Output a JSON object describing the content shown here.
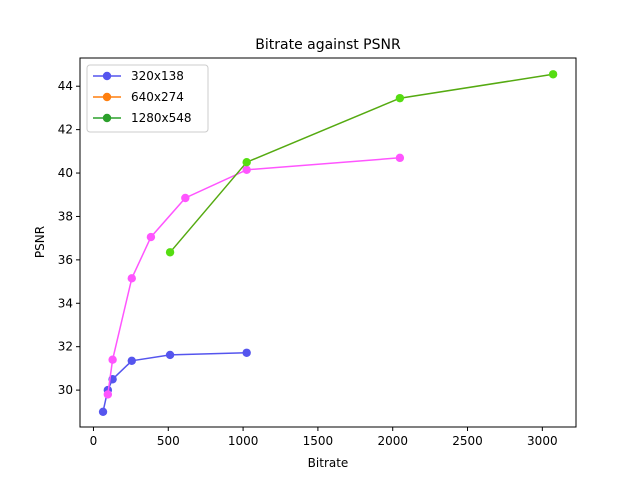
{
  "chart_data": {
    "type": "line",
    "title": "Bitrate against PSNR",
    "xlabel": "Bitrate",
    "ylabel": "PSNR",
    "xlim": [
      -90,
      3225
    ],
    "ylim": [
      28.3,
      45.3
    ],
    "xticks": [
      0,
      500,
      1000,
      1500,
      2000,
      2500,
      3000
    ],
    "yticks": [
      30,
      32,
      34,
      36,
      38,
      40,
      42,
      44
    ],
    "grid": false,
    "legend_position": "top-left",
    "legend": [
      {
        "label": "320x138",
        "color": "#5555ee"
      },
      {
        "label": "640x274",
        "color": "#ff7f0e"
      },
      {
        "label": "1280x548",
        "color": "#2ca02c"
      }
    ],
    "series": [
      {
        "name": "320x138",
        "color": "#5555ee",
        "x": [
          64,
          96,
          128,
          256,
          512,
          1024
        ],
        "y": [
          29.0,
          30.0,
          30.5,
          31.35,
          31.62,
          31.72
        ]
      },
      {
        "name": "640x274",
        "color": "#ff55ff",
        "x": [
          96,
          128,
          256,
          384,
          614,
          1024,
          2048
        ],
        "y": [
          29.8,
          31.4,
          35.15,
          37.05,
          38.85,
          40.15,
          40.7
        ]
      },
      {
        "name": "1280x548",
        "color": "#55dd11",
        "line_color": "#55aa11",
        "x": [
          512,
          1024,
          2048,
          3072
        ],
        "y": [
          36.35,
          40.5,
          43.45,
          44.55
        ]
      }
    ]
  }
}
